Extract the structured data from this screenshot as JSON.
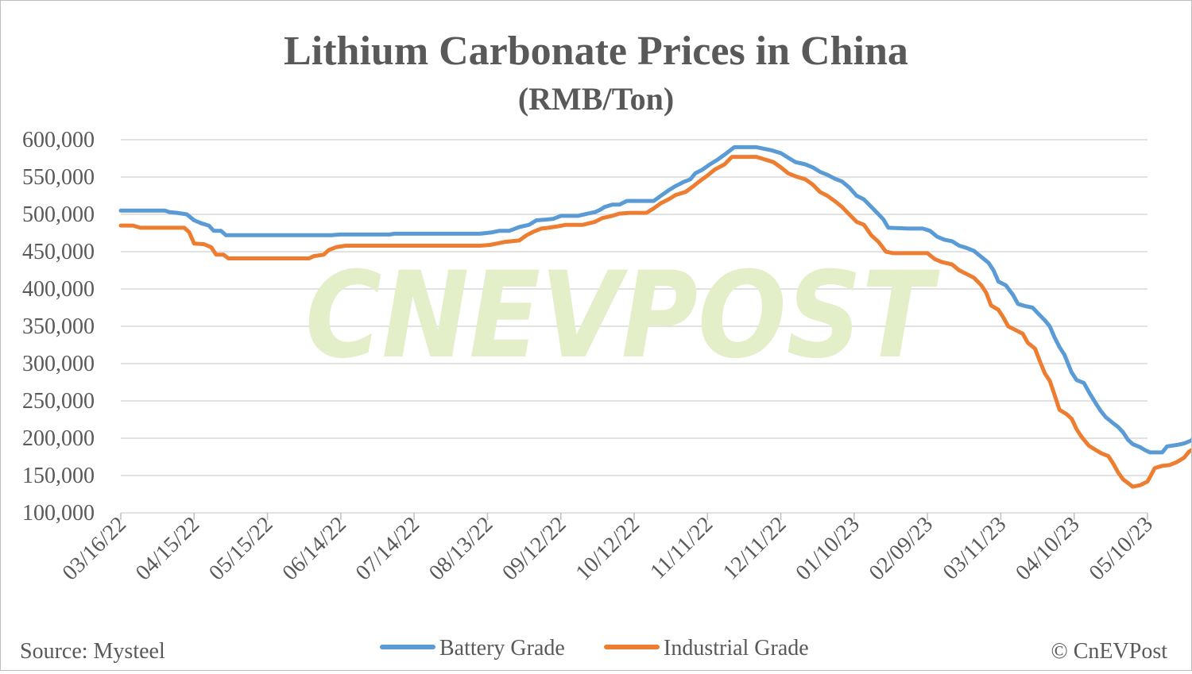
{
  "chart_data": {
    "type": "line",
    "title": "Lithium Carbonate Prices in China",
    "subtitle": "(RMB/Ton)",
    "source": "Source: Mysteel",
    "credit": "© CnEVPost",
    "watermark": "CNEVPOST",
    "ylim": [
      100000,
      600000
    ],
    "y_ticks": [
      100000,
      150000,
      200000,
      250000,
      300000,
      350000,
      400000,
      450000,
      500000,
      550000,
      600000
    ],
    "y_tick_labels": [
      "100,000",
      "150,000",
      "200,000",
      "250,000",
      "300,000",
      "350,000",
      "400,000",
      "450,000",
      "500,000",
      "550,000",
      "600,000"
    ],
    "x_range": [
      "2022-03-16",
      "2023-05-10"
    ],
    "x_tick_labels": [
      "03/16/22",
      "04/15/22",
      "05/15/22",
      "06/14/22",
      "07/14/22",
      "08/13/22",
      "09/12/22",
      "10/12/22",
      "11/11/22",
      "12/11/22",
      "01/10/23",
      "02/09/23",
      "03/11/23",
      "04/10/23",
      "05/10/23"
    ],
    "grid": true,
    "legend_position": "bottom-center",
    "colors": {
      "grid": "#d9d9d9",
      "text": "#595959",
      "watermark": "#e2efc8"
    },
    "series": [
      {
        "name": "Battery Grade",
        "color": "#5b9bd5",
        "points": [
          [
            "2022-03-16",
            505000
          ],
          [
            "2022-04-03",
            505000
          ],
          [
            "2022-04-05",
            503000
          ],
          [
            "2022-04-08",
            502000
          ],
          [
            "2022-04-12",
            500000
          ],
          [
            "2022-04-15",
            492000
          ],
          [
            "2022-04-18",
            488000
          ],
          [
            "2022-04-21",
            485000
          ],
          [
            "2022-04-23",
            478000
          ],
          [
            "2022-04-26",
            478000
          ],
          [
            "2022-04-28",
            472000
          ],
          [
            "2022-06-10",
            472000
          ],
          [
            "2022-06-14",
            473000
          ],
          [
            "2022-07-04",
            473000
          ],
          [
            "2022-07-06",
            474000
          ],
          [
            "2022-08-10",
            474000
          ],
          [
            "2022-08-15",
            476000
          ],
          [
            "2022-08-18",
            478000
          ],
          [
            "2022-08-22",
            478000
          ],
          [
            "2022-08-26",
            483000
          ],
          [
            "2022-08-30",
            486000
          ],
          [
            "2022-09-02",
            492000
          ],
          [
            "2022-09-06",
            493000
          ],
          [
            "2022-09-09",
            494000
          ],
          [
            "2022-09-12",
            498000
          ],
          [
            "2022-09-19",
            498000
          ],
          [
            "2022-09-23",
            501000
          ],
          [
            "2022-09-26",
            503000
          ],
          [
            "2022-09-28",
            506000
          ],
          [
            "2022-09-30",
            510000
          ],
          [
            "2022-10-03",
            513000
          ],
          [
            "2022-10-06",
            513000
          ],
          [
            "2022-10-09",
            518000
          ],
          [
            "2022-10-20",
            518000
          ],
          [
            "2022-10-23",
            525000
          ],
          [
            "2022-10-26",
            532000
          ],
          [
            "2022-10-29",
            538000
          ],
          [
            "2022-11-01",
            543000
          ],
          [
            "2022-11-04",
            547000
          ],
          [
            "2022-11-06",
            555000
          ],
          [
            "2022-11-09",
            560000
          ],
          [
            "2022-11-12",
            567000
          ],
          [
            "2022-11-15",
            573000
          ],
          [
            "2022-11-18",
            580000
          ],
          [
            "2022-11-22",
            590000
          ],
          [
            "2022-12-01",
            590000
          ],
          [
            "2022-12-04",
            588000
          ],
          [
            "2022-12-07",
            586000
          ],
          [
            "2022-12-11",
            582000
          ],
          [
            "2022-12-14",
            576000
          ],
          [
            "2022-12-17",
            570000
          ],
          [
            "2022-12-21",
            567000
          ],
          [
            "2022-12-24",
            563000
          ],
          [
            "2022-12-27",
            557000
          ],
          [
            "2022-12-30",
            553000
          ],
          [
            "2023-01-02",
            548000
          ],
          [
            "2023-01-05",
            544000
          ],
          [
            "2023-01-08",
            536000
          ],
          [
            "2023-01-11",
            525000
          ],
          [
            "2023-01-14",
            520000
          ],
          [
            "2023-01-17",
            510000
          ],
          [
            "2023-01-20",
            500000
          ],
          [
            "2023-01-22",
            493000
          ],
          [
            "2023-01-24",
            482000
          ],
          [
            "2023-02-01",
            481000
          ],
          [
            "2023-02-07",
            481000
          ],
          [
            "2023-02-10",
            478000
          ],
          [
            "2023-02-13",
            470000
          ],
          [
            "2023-02-16",
            466000
          ],
          [
            "2023-02-19",
            464000
          ],
          [
            "2023-02-22",
            458000
          ],
          [
            "2023-02-25",
            455000
          ],
          [
            "2023-02-28",
            451000
          ],
          [
            "2023-03-03",
            443000
          ],
          [
            "2023-03-06",
            435000
          ],
          [
            "2023-03-08",
            425000
          ],
          [
            "2023-03-10",
            410000
          ],
          [
            "2023-03-13",
            405000
          ],
          [
            "2023-03-16",
            392000
          ],
          [
            "2023-03-18",
            380000
          ],
          [
            "2023-03-21",
            377000
          ],
          [
            "2023-03-24",
            375000
          ],
          [
            "2023-03-26",
            368000
          ],
          [
            "2023-03-29",
            358000
          ],
          [
            "2023-03-31",
            350000
          ],
          [
            "2023-04-02",
            335000
          ],
          [
            "2023-04-04",
            322000
          ],
          [
            "2023-04-06",
            312000
          ],
          [
            "2023-04-09",
            288000
          ],
          [
            "2023-04-11",
            278000
          ],
          [
            "2023-04-14",
            274000
          ],
          [
            "2023-04-16",
            262000
          ],
          [
            "2023-04-19",
            246000
          ],
          [
            "2023-04-21",
            236000
          ],
          [
            "2023-04-23",
            228000
          ],
          [
            "2023-04-26",
            220000
          ],
          [
            "2023-04-28",
            215000
          ],
          [
            "2023-04-30",
            208000
          ],
          [
            "2023-05-02",
            198000
          ],
          [
            "2023-05-04",
            192000
          ],
          [
            "2023-05-07",
            188000
          ],
          [
            "2023-05-09",
            184000
          ],
          [
            "2023-05-11",
            181000
          ],
          [
            "2023-05-16",
            181000
          ],
          [
            "2023-05-18",
            189000
          ],
          [
            "2023-05-22",
            191000
          ],
          [
            "2023-05-25",
            193000
          ],
          [
            "2023-05-28",
            197000
          ],
          [
            "2023-05-30",
            207000
          ],
          [
            "2023-06-01",
            217000
          ]
        ]
      },
      {
        "name": "Industrial Grade",
        "color": "#ed7d31",
        "points": [
          [
            "2022-03-16",
            485000
          ],
          [
            "2022-03-21",
            485000
          ],
          [
            "2022-03-24",
            482000
          ],
          [
            "2022-04-11",
            482000
          ],
          [
            "2022-04-13",
            476000
          ],
          [
            "2022-04-15",
            461000
          ],
          [
            "2022-04-19",
            460000
          ],
          [
            "2022-04-22",
            456000
          ],
          [
            "2022-04-24",
            446000
          ],
          [
            "2022-04-27",
            446000
          ],
          [
            "2022-04-29",
            441000
          ],
          [
            "2022-06-01",
            441000
          ],
          [
            "2022-06-03",
            444000
          ],
          [
            "2022-06-07",
            446000
          ],
          [
            "2022-06-09",
            452000
          ],
          [
            "2022-06-12",
            456000
          ],
          [
            "2022-06-16",
            458000
          ],
          [
            "2022-08-10",
            458000
          ],
          [
            "2022-08-14",
            459000
          ],
          [
            "2022-08-17",
            461000
          ],
          [
            "2022-08-20",
            463000
          ],
          [
            "2022-08-26",
            465000
          ],
          [
            "2022-08-29",
            472000
          ],
          [
            "2022-09-01",
            477000
          ],
          [
            "2022-09-04",
            481000
          ],
          [
            "2022-09-07",
            482000
          ],
          [
            "2022-09-11",
            484000
          ],
          [
            "2022-09-14",
            486000
          ],
          [
            "2022-09-21",
            486000
          ],
          [
            "2022-09-26",
            490000
          ],
          [
            "2022-09-29",
            495000
          ],
          [
            "2022-10-03",
            498000
          ],
          [
            "2022-10-06",
            501000
          ],
          [
            "2022-10-10",
            502000
          ],
          [
            "2022-10-17",
            502000
          ],
          [
            "2022-10-20",
            508000
          ],
          [
            "2022-10-23",
            515000
          ],
          [
            "2022-10-26",
            520000
          ],
          [
            "2022-10-29",
            526000
          ],
          [
            "2022-11-02",
            530000
          ],
          [
            "2022-11-05",
            537000
          ],
          [
            "2022-11-08",
            545000
          ],
          [
            "2022-11-11",
            552000
          ],
          [
            "2022-11-14",
            560000
          ],
          [
            "2022-11-18",
            567000
          ],
          [
            "2022-11-21",
            577000
          ],
          [
            "2022-12-01",
            577000
          ],
          [
            "2022-12-04",
            574000
          ],
          [
            "2022-12-08",
            570000
          ],
          [
            "2022-12-11",
            563000
          ],
          [
            "2022-12-14",
            555000
          ],
          [
            "2022-12-17",
            551000
          ],
          [
            "2022-12-21",
            547000
          ],
          [
            "2022-12-24",
            540000
          ],
          [
            "2022-12-27",
            530000
          ],
          [
            "2022-12-30",
            525000
          ],
          [
            "2023-01-02",
            518000
          ],
          [
            "2023-01-05",
            510000
          ],
          [
            "2023-01-08",
            500000
          ],
          [
            "2023-01-11",
            490000
          ],
          [
            "2023-01-14",
            486000
          ],
          [
            "2023-01-17",
            472000
          ],
          [
            "2023-01-20",
            463000
          ],
          [
            "2023-01-23",
            450000
          ],
          [
            "2023-01-26",
            448000
          ],
          [
            "2023-02-09",
            448000
          ],
          [
            "2023-02-12",
            440000
          ],
          [
            "2023-02-15",
            436000
          ],
          [
            "2023-02-19",
            433000
          ],
          [
            "2023-02-22",
            425000
          ],
          [
            "2023-02-25",
            420000
          ],
          [
            "2023-02-28",
            415000
          ],
          [
            "2023-03-03",
            405000
          ],
          [
            "2023-03-05",
            395000
          ],
          [
            "2023-03-07",
            378000
          ],
          [
            "2023-03-10",
            372000
          ],
          [
            "2023-03-12",
            362000
          ],
          [
            "2023-03-14",
            350000
          ],
          [
            "2023-03-17",
            345000
          ],
          [
            "2023-03-20",
            340000
          ],
          [
            "2023-03-22",
            328000
          ],
          [
            "2023-03-25",
            320000
          ],
          [
            "2023-03-27",
            303000
          ],
          [
            "2023-03-29",
            287000
          ],
          [
            "2023-03-31",
            277000
          ],
          [
            "2023-04-02",
            258000
          ],
          [
            "2023-04-04",
            238000
          ],
          [
            "2023-04-07",
            232000
          ],
          [
            "2023-04-09",
            226000
          ],
          [
            "2023-04-11",
            212000
          ],
          [
            "2023-04-13",
            202000
          ],
          [
            "2023-04-16",
            190000
          ],
          [
            "2023-04-18",
            186000
          ],
          [
            "2023-04-21",
            180000
          ],
          [
            "2023-04-24",
            176000
          ],
          [
            "2023-04-26",
            166000
          ],
          [
            "2023-04-28",
            154000
          ],
          [
            "2023-04-30",
            145000
          ],
          [
            "2023-05-02",
            140000
          ],
          [
            "2023-05-04",
            135000
          ],
          [
            "2023-05-07",
            137000
          ],
          [
            "2023-05-10",
            142000
          ],
          [
            "2023-05-13",
            160000
          ],
          [
            "2023-05-16",
            163000
          ],
          [
            "2023-05-19",
            164000
          ],
          [
            "2023-05-22",
            168000
          ],
          [
            "2023-05-25",
            174000
          ],
          [
            "2023-05-27",
            182000
          ],
          [
            "2023-05-30",
            188000
          ]
        ]
      }
    ]
  }
}
